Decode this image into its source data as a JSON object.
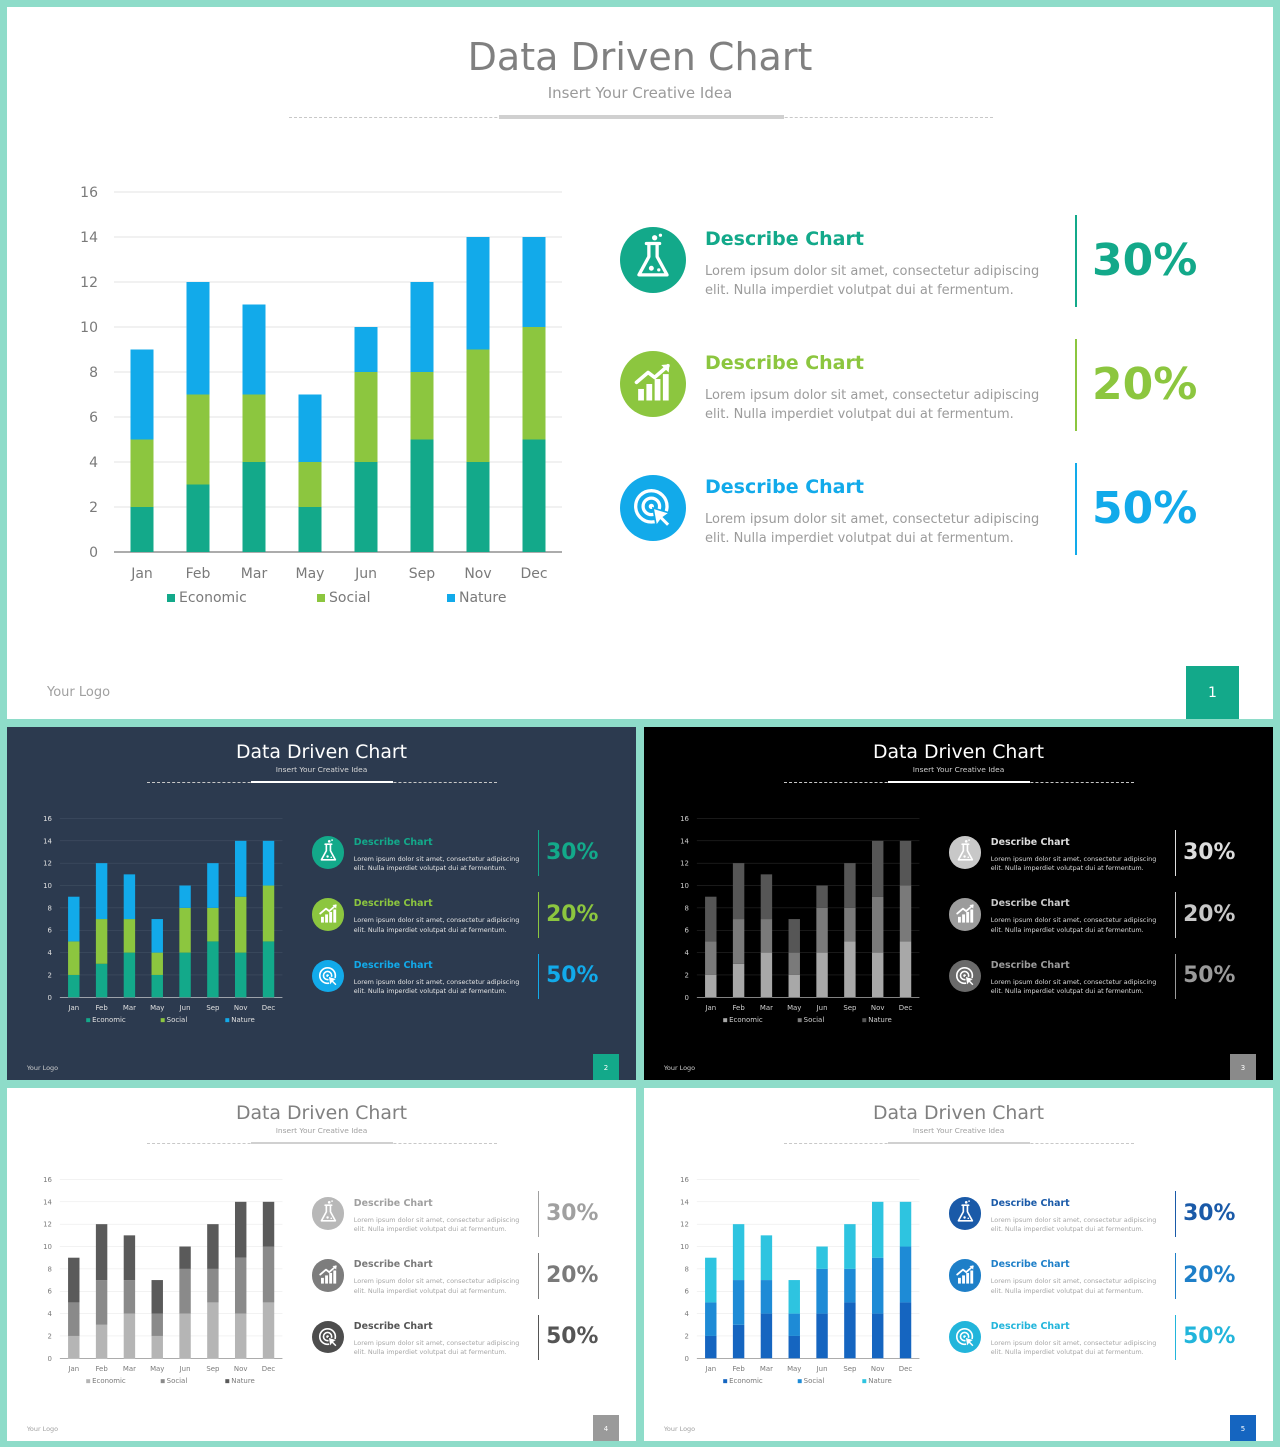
{
  "slide": {
    "title": "Data Driven Chart",
    "subtitle": "Insert Your Creative Idea",
    "logo": "Your Logo"
  },
  "chart_data": {
    "type": "bar",
    "stacked": true,
    "categories": [
      "Jan",
      "Feb",
      "Mar",
      "May",
      "Jun",
      "Sep",
      "Nov",
      "Dec"
    ],
    "series": [
      {
        "name": "Economic",
        "values": [
          2,
          3,
          4,
          2,
          4,
          5,
          4,
          5
        ]
      },
      {
        "name": "Social",
        "values": [
          3,
          4,
          3,
          2,
          4,
          3,
          5,
          5
        ]
      },
      {
        "name": "Nature",
        "values": [
          4,
          5,
          4,
          3,
          2,
          4,
          5,
          4
        ]
      }
    ],
    "ylim": [
      0,
      16
    ],
    "yticks": [
      0,
      2,
      4,
      6,
      8,
      10,
      12,
      14,
      16
    ],
    "grid": true,
    "legend": "bottom"
  },
  "info": [
    {
      "heading": "Describe Chart",
      "line1": "Lorem ipsum dolor sit amet, consectetur adipiscing",
      "line2": "elit. Nulla imperdiet volutpat dui at fermentum.",
      "percent": "30%",
      "icon": "flask-icon"
    },
    {
      "heading": "Describe Chart",
      "line1": "Lorem ipsum dolor sit amet, consectetur adipiscing",
      "line2": "elit. Nulla imperdiet volutpat dui at fermentum.",
      "percent": "20%",
      "icon": "growth-chart-icon"
    },
    {
      "heading": "Describe Chart",
      "line1": "Lorem ipsum dolor sit amet, consectetur adipiscing",
      "line2": "elit. Nulla imperdiet volutpat dui at fermentum.",
      "percent": "50%",
      "icon": "target-click-icon"
    }
  ],
  "slides": [
    {
      "variant": "green-light",
      "page": "1",
      "bg": "#ffffff",
      "title_color": "#808080",
      "sub_color": "#9a9a9a",
      "axis_color": "#7a7a7a",
      "grid_color": "#e3e3e3",
      "body_color": "#9b9b9b",
      "series_colors": [
        "#13a98a",
        "#8cc63f",
        "#12aaea"
      ],
      "info_colors": [
        "#13a98a",
        "#8cc63f",
        "#12aaea"
      ],
      "icon_colors": [
        "#13a98a",
        "#8cc63f",
        "#12aaea"
      ],
      "page_color": "#13a98a",
      "bar_color": "#d0d0d0"
    },
    {
      "variant": "navy",
      "page": "2",
      "bg": "#2c3a4f",
      "title_color": "#ffffff",
      "sub_color": "#d8d8d8",
      "axis_color": "#e0e0e0",
      "grid_color": "#475568",
      "body_color": "#e3e3e3",
      "series_colors": [
        "#13a98a",
        "#8cc63f",
        "#12aaea"
      ],
      "info_colors": [
        "#13a98a",
        "#8cc63f",
        "#12aaea"
      ],
      "icon_colors": [
        "#13a98a",
        "#8cc63f",
        "#12aaea"
      ],
      "page_color": "#13a98a",
      "bar_color": "#ffffff"
    },
    {
      "variant": "black",
      "page": "3",
      "bg": "#000000",
      "title_color": "#ffffff",
      "sub_color": "#d0d0d0",
      "axis_color": "#cfcfcf",
      "grid_color": "#333333",
      "body_color": "#d8d8d8",
      "series_colors": [
        "#a8a8a8",
        "#7a7a7a",
        "#565656"
      ],
      "info_colors": [
        "#dddddd",
        "#c8c8c8",
        "#9a9a9a"
      ],
      "icon_colors": [
        "#c8c8c8",
        "#9c9c9c",
        "#6a6a6a"
      ],
      "page_color": "#8a8a8a",
      "bar_color": "#ffffff"
    },
    {
      "variant": "gray-light",
      "page": "4",
      "bg": "#ffffff",
      "title_color": "#808080",
      "sub_color": "#a0a0a0",
      "axis_color": "#7a7a7a",
      "grid_color": "#e5e5e5",
      "body_color": "#a7a7a7",
      "series_colors": [
        "#b5b5b5",
        "#8a8a8a",
        "#5a5a5a"
      ],
      "info_colors": [
        "#a0a0a0",
        "#7a7a7a",
        "#555555"
      ],
      "icon_colors": [
        "#b8b8b8",
        "#7d7d7d",
        "#4d4d4d"
      ],
      "page_color": "#9a9a9a",
      "bar_color": "#d0d0d0"
    },
    {
      "variant": "blue-light",
      "page": "5",
      "bg": "#ffffff",
      "title_color": "#808080",
      "sub_color": "#a0a0a0",
      "axis_color": "#7a7a7a",
      "grid_color": "#e5e5e5",
      "body_color": "#a7a7a7",
      "series_colors": [
        "#1565c0",
        "#1e8bd6",
        "#2ec4e0"
      ],
      "info_colors": [
        "#1a5aa8",
        "#1e7fc8",
        "#22b5db"
      ],
      "icon_colors": [
        "#1a5aa8",
        "#1e7fc8",
        "#22b5db"
      ],
      "page_color": "#1565c0",
      "bar_color": "#d0d0d0"
    }
  ]
}
